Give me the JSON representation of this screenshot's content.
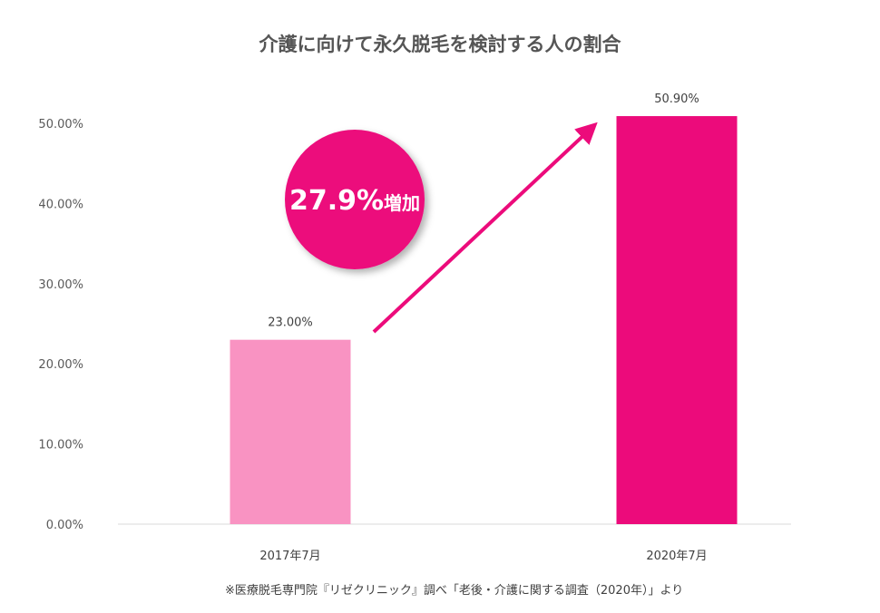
{
  "chart_data": {
    "type": "bar",
    "title": "介護に向けて永久脱毛を検討する人の割合",
    "categories": [
      "2017年7月",
      "2020年7月"
    ],
    "values": [
      23.0,
      50.9
    ],
    "value_labels": [
      "23.00%",
      "50.90%"
    ],
    "ylim": [
      0,
      50
    ],
    "yticks": [
      0,
      10,
      20,
      30,
      40,
      50
    ],
    "ytick_labels": [
      "0.00%",
      "10.00%",
      "20.00%",
      "30.00%",
      "40.00%",
      "50.00%"
    ],
    "bar_colors": [
      "#f993c2",
      "#ec0b7b"
    ],
    "grid": false,
    "legend": "none",
    "annotation": {
      "value": "27.9%",
      "suffix": "増加",
      "circle_color": "#ec0b7b",
      "arrow_color": "#ec0b7b"
    }
  },
  "source_note": "※医療脱毛専門院『リゼクリニック』調べ「老後・介護に関する調査（2020年）」より"
}
